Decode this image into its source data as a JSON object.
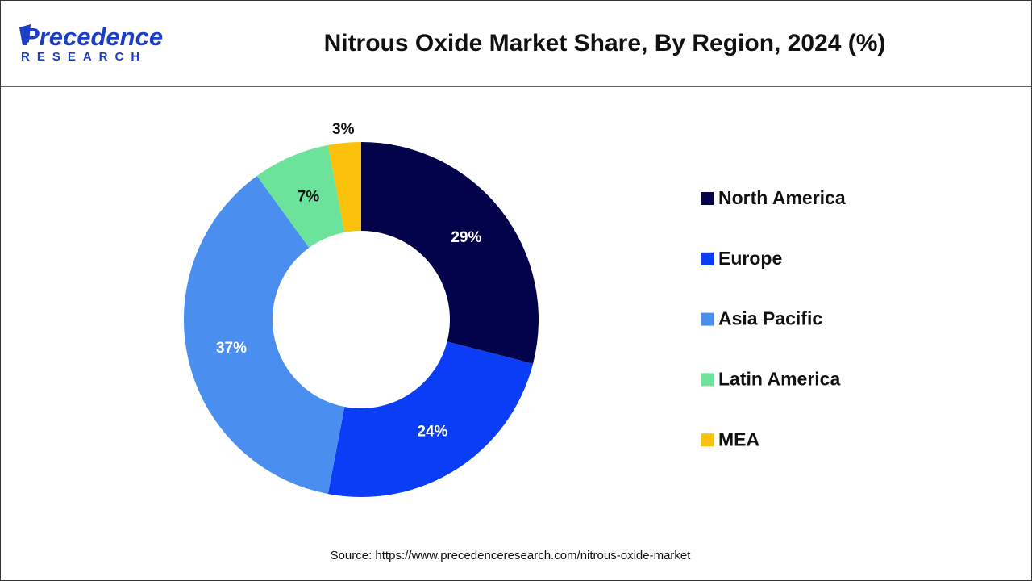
{
  "logo": {
    "name": "Precedence",
    "tagline": "RESEARCH"
  },
  "chart_data": {
    "type": "donut",
    "title": "Nitrous Oxide Market Share, By Region, 2024 (%)",
    "categories": [
      "North America",
      "Europe",
      "Asia Pacific",
      "Latin America",
      "MEA"
    ],
    "values": [
      29,
      24,
      37,
      7,
      3
    ],
    "value_labels": [
      "29%",
      "24%",
      "37%",
      "7%",
      "3%"
    ],
    "colors": [
      "#02034a",
      "#0a3df5",
      "#4a8ff0",
      "#6be39a",
      "#fbc10a"
    ],
    "source": "Source: https://www.precedenceresearch.com/nitrous-oxide-market"
  }
}
